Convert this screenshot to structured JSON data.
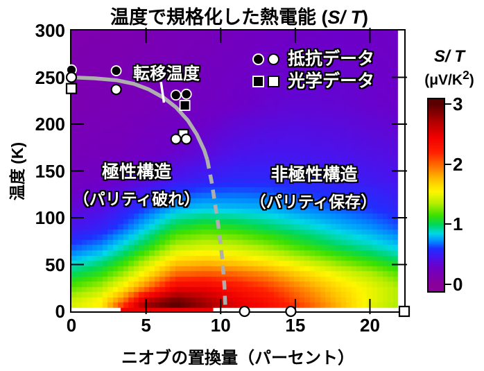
{
  "title": {
    "prefix": "温度で規格化した熱電能 (",
    "italic": "S/ T",
    "suffix": ")"
  },
  "axes": {
    "x_label": "ニオブの置換量（パーセント）",
    "y_label": "温度 (K)"
  },
  "legend": {
    "rows": [
      {
        "type": "circle",
        "label": "抵抗データ"
      },
      {
        "type": "square",
        "label": "光学データ"
      }
    ]
  },
  "annotations": {
    "transition": "転移温度",
    "polar_line1": "極性構造",
    "polar_line2": "（パリティ破れ）",
    "nonpolar_line1": "非極性構造",
    "nonpolar_line2": "（パリティ保存）"
  },
  "colorbar": {
    "label_italic": "S/ T",
    "unit_prefix": "(μV/K",
    "unit_sup": "2",
    "unit_suffix": ")",
    "ticks": [
      3,
      2,
      1,
      0
    ]
  },
  "chart_data": {
    "type": "heatmap",
    "title": "温度で規格化した熱電能 (S/T)",
    "xlabel": "ニオブの置換量（パーセント）",
    "ylabel": "温度 (K)",
    "colorbar_label": "S/T (μV/K2)",
    "xlim": [
      0,
      22.3
    ],
    "ylim": [
      0,
      300
    ],
    "clim": [
      0,
      3
    ],
    "x_ticks": [
      0,
      5,
      10,
      15,
      20
    ],
    "y_ticks": [
      0,
      50,
      100,
      150,
      200,
      250,
      300
    ],
    "colorbar_ticks": [
      0,
      1,
      2,
      3
    ],
    "grid_x": [
      0,
      2,
      3.5,
      5,
      7,
      9,
      11,
      13,
      15,
      18,
      20,
      22.5
    ],
    "grid_T": [
      0,
      10,
      25,
      40,
      55,
      70,
      90,
      110,
      140,
      170,
      220,
      300
    ],
    "values": [
      [
        1.45,
        1.55,
        2.4,
        2.9,
        3.0,
        2.8,
        2.55,
        2.4,
        2.2,
        1.8,
        1.45,
        1.25
      ],
      [
        1.42,
        1.58,
        2.0,
        2.7,
        3.0,
        2.75,
        2.5,
        2.35,
        2.1,
        1.75,
        1.5,
        1.3
      ],
      [
        1.2,
        1.35,
        1.6,
        1.95,
        2.45,
        2.45,
        2.3,
        2.15,
        1.95,
        1.65,
        1.5,
        1.3
      ],
      [
        1.0,
        1.12,
        1.32,
        1.6,
        2.0,
        2.05,
        2.0,
        1.9,
        1.72,
        1.48,
        1.35,
        1.15
      ],
      [
        0.8,
        0.92,
        1.08,
        1.32,
        1.65,
        1.7,
        1.65,
        1.55,
        1.42,
        1.22,
        1.1,
        0.95
      ],
      [
        0.62,
        0.72,
        0.88,
        1.05,
        1.35,
        1.42,
        1.38,
        1.28,
        1.15,
        0.98,
        0.9,
        0.78
      ],
      [
        0.45,
        0.52,
        0.65,
        0.82,
        1.05,
        1.12,
        1.08,
        1.0,
        0.92,
        0.8,
        0.73,
        0.62
      ],
      [
        0.35,
        0.4,
        0.5,
        0.62,
        0.78,
        0.82,
        0.8,
        0.78,
        0.72,
        0.65,
        0.6,
        0.52
      ],
      [
        0.25,
        0.28,
        0.32,
        0.38,
        0.47,
        0.52,
        0.55,
        0.55,
        0.53,
        0.5,
        0.48,
        0.44
      ],
      [
        0.2,
        0.22,
        0.24,
        0.28,
        0.32,
        0.37,
        0.43,
        0.45,
        0.45,
        0.43,
        0.41,
        0.38
      ],
      [
        0.15,
        0.17,
        0.18,
        0.2,
        0.23,
        0.26,
        0.3,
        0.33,
        0.35,
        0.34,
        0.32,
        0.3
      ],
      [
        0.12,
        0.13,
        0.14,
        0.16,
        0.18,
        0.2,
        0.23,
        0.26,
        0.28,
        0.3,
        0.29,
        0.27
      ]
    ],
    "colormap": [
      [
        0.0,
        "#8a009b"
      ],
      [
        0.3,
        "#6d00c8"
      ],
      [
        0.45,
        "#4814ee"
      ],
      [
        0.6,
        "#1e30ff"
      ],
      [
        0.72,
        "#008cff"
      ],
      [
        0.85,
        "#00d8e8"
      ],
      [
        1.0,
        "#00d75a"
      ],
      [
        1.15,
        "#3ce000"
      ],
      [
        1.35,
        "#b4ee00"
      ],
      [
        1.55,
        "#fff600"
      ],
      [
        1.75,
        "#ffc000"
      ],
      [
        1.95,
        "#ff7800"
      ],
      [
        2.2,
        "#ff2000"
      ],
      [
        2.45,
        "#f00000"
      ],
      [
        2.7,
        "#b40000"
      ],
      [
        3.0,
        "#5a0000"
      ]
    ],
    "heat_extent": {
      "x": [
        0,
        21.88
      ],
      "T": [
        3.7,
        300
      ]
    },
    "bottom_strip": {
      "x": [
        3.3,
        9.5
      ],
      "color": "#ec0000"
    },
    "markers": {
      "resistance_filled_circles": [
        [
          0,
          258
        ],
        [
          3.0,
          257
        ],
        [
          7.0,
          231
        ],
        [
          7.7,
          232
        ]
      ],
      "resistance_open_circles": [
        [
          0,
          250
        ],
        [
          3.0,
          237
        ],
        [
          7.0,
          184
        ],
        [
          7.7,
          184
        ],
        [
          11.6,
          0
        ],
        [
          14.7,
          0
        ]
      ],
      "optical_filled_squares": [
        [
          7.6,
          220
        ]
      ],
      "optical_open_squares": [
        [
          0,
          238
        ],
        [
          7.5,
          189
        ],
        [
          22.3,
          0
        ]
      ]
    },
    "transition_curve": {
      "color": "#aeaeae",
      "solid": [
        [
          0,
          250
        ],
        [
          1.5,
          249
        ],
        [
          3,
          247
        ],
        [
          4.2,
          243
        ],
        [
          5.2,
          237
        ],
        [
          6.2,
          228
        ],
        [
          7.0,
          218
        ],
        [
          7.8,
          204
        ],
        [
          8.4,
          189
        ],
        [
          8.9,
          172
        ],
        [
          9.1,
          162
        ]
      ],
      "dashed": [
        [
          9.1,
          162
        ],
        [
          9.4,
          138
        ],
        [
          9.65,
          112
        ],
        [
          9.9,
          85
        ],
        [
          10.1,
          57
        ],
        [
          10.25,
          28
        ],
        [
          10.33,
          0
        ]
      ]
    },
    "transition_pointer": [
      [
        6.0,
        245
      ],
      [
        6.2,
        223
      ]
    ]
  }
}
